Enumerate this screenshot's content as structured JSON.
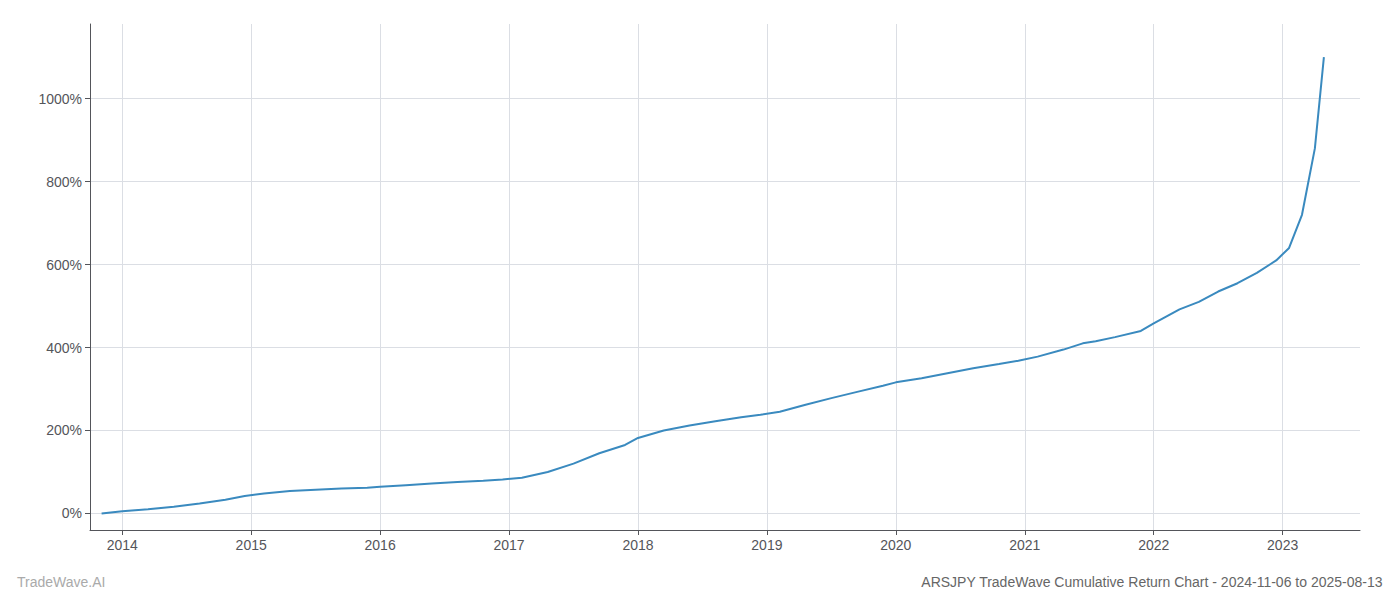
{
  "chart_data": {
    "type": "line",
    "title": "ARSJPY TradeWave Cumulative Return Chart - 2024-11-06 to 2025-08-13",
    "annotations": [
      "TradeWave.AI"
    ],
    "color": "#3a8abf",
    "x": [
      2013.84,
      2014.0,
      2014.2,
      2014.4,
      2014.6,
      2014.8,
      2014.95,
      2015.1,
      2015.3,
      2015.5,
      2015.7,
      2015.9,
      2016.0,
      2016.2,
      2016.4,
      2016.6,
      2016.8,
      2016.95,
      2017.1,
      2017.3,
      2017.5,
      2017.7,
      2017.9,
      2018.0,
      2018.2,
      2018.4,
      2018.6,
      2018.8,
      2018.95,
      2019.1,
      2019.3,
      2019.5,
      2019.7,
      2019.9,
      2020.0,
      2020.2,
      2020.4,
      2020.6,
      2020.8,
      2020.95,
      2021.1,
      2021.3,
      2021.45,
      2021.55,
      2021.7,
      2021.9,
      2022.0,
      2022.1,
      2022.2,
      2022.35,
      2022.5,
      2022.65,
      2022.8,
      2022.95,
      2023.05,
      2023.15,
      2023.25,
      2023.32
    ],
    "values": [
      0,
      5,
      10,
      16,
      24,
      33,
      42,
      48,
      54,
      57,
      60,
      62,
      64,
      68,
      72,
      76,
      79,
      82,
      86,
      100,
      120,
      145,
      165,
      182,
      200,
      212,
      222,
      232,
      238,
      245,
      262,
      278,
      293,
      308,
      316,
      326,
      338,
      350,
      360,
      368,
      378,
      395,
      410,
      415,
      425,
      440,
      458,
      475,
      492,
      510,
      535,
      555,
      580,
      610,
      640,
      720,
      880,
      1100
    ],
    "xlim": [
      2013.75,
      2023.6
    ],
    "xticks": [
      2014,
      2015,
      2016,
      2017,
      2018,
      2019,
      2020,
      2021,
      2022,
      2023
    ],
    "ylim": [
      -40,
      1180
    ],
    "yticks": [
      {
        "value": 0,
        "label": "0%"
      },
      {
        "value": 200,
        "label": "200%"
      },
      {
        "value": 400,
        "label": "400%"
      },
      {
        "value": 600,
        "label": "600%"
      },
      {
        "value": 800,
        "label": "800%"
      },
      {
        "value": 1000,
        "label": "1000%"
      }
    ],
    "grid": true
  }
}
